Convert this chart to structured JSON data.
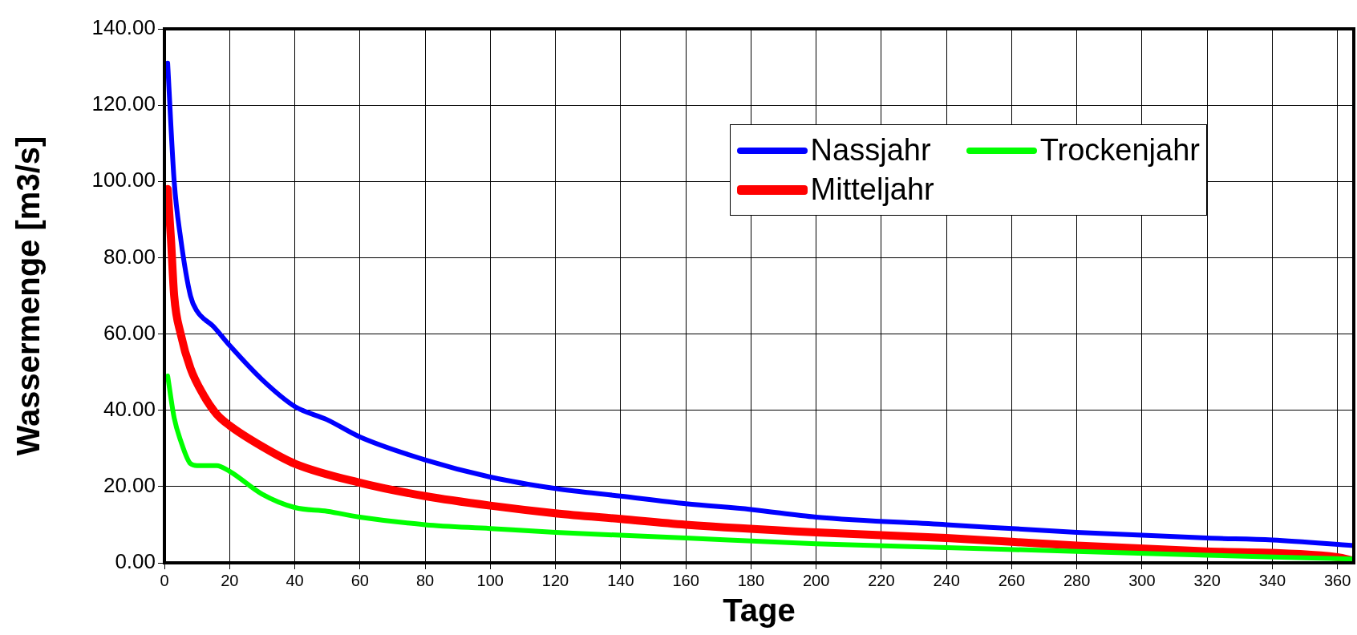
{
  "chart_data": {
    "type": "line",
    "xlabel": "Tage",
    "ylabel": "Wassermenge [m3/s]",
    "xlim": [
      0,
      365
    ],
    "xticks": [
      0,
      20,
      40,
      60,
      80,
      100,
      120,
      140,
      160,
      180,
      200,
      220,
      240,
      260,
      280,
      300,
      320,
      340,
      360
    ],
    "ylim": [
      0,
      140
    ],
    "yticks": [
      {
        "value": 0,
        "label": "0.00"
      },
      {
        "value": 20,
        "label": "20.00"
      },
      {
        "value": 40,
        "label": "40.00"
      },
      {
        "value": 60,
        "label": "60.00"
      },
      {
        "value": 80,
        "label": "80.00"
      },
      {
        "value": 100,
        "label": "100.00"
      },
      {
        "value": 120,
        "label": "120.00"
      },
      {
        "value": 140,
        "label": "140.00"
      }
    ],
    "grid": true,
    "legend": "top right",
    "marker": "none",
    "line_style": "solid",
    "series": [
      {
        "name": "Nassjahr",
        "color": "#0000ff",
        "x": [
          1,
          3,
          5,
          8,
          10,
          15,
          20,
          30,
          40,
          50,
          60,
          80,
          100,
          120,
          140,
          160,
          180,
          200,
          240,
          280,
          320,
          340,
          365
        ],
        "values": [
          131,
          100,
          85,
          70,
          66,
          62,
          57,
          48,
          41,
          37.5,
          33,
          27,
          22.5,
          19.5,
          17.5,
          15.5,
          14,
          12,
          10,
          8,
          6.5,
          6,
          4.5
        ]
      },
      {
        "name": "Trockenjahr",
        "color": "#00ff00",
        "x": [
          1,
          3,
          5,
          8,
          10,
          16,
          20,
          30,
          40,
          50,
          60,
          80,
          100,
          120,
          160,
          200,
          240,
          280,
          320,
          365
        ],
        "values": [
          49,
          38,
          32,
          26,
          25.5,
          25.5,
          24,
          18,
          14.5,
          13.5,
          12,
          10,
          9,
          8,
          6.5,
          5,
          4,
          3,
          2,
          1
        ]
      },
      {
        "name": "Mitteljahr",
        "color": "#ff0000",
        "x": [
          1,
          2,
          3,
          5,
          8,
          12,
          16,
          20,
          30,
          40,
          60,
          80,
          100,
          120,
          140,
          160,
          200,
          240,
          280,
          320,
          360,
          365
        ],
        "values": [
          98,
          85,
          70,
          60,
          51,
          44,
          39,
          36,
          30.5,
          26,
          21,
          17.5,
          15,
          13,
          11.5,
          10,
          8,
          6.5,
          4.5,
          3,
          1.5,
          0.5
        ]
      }
    ]
  }
}
